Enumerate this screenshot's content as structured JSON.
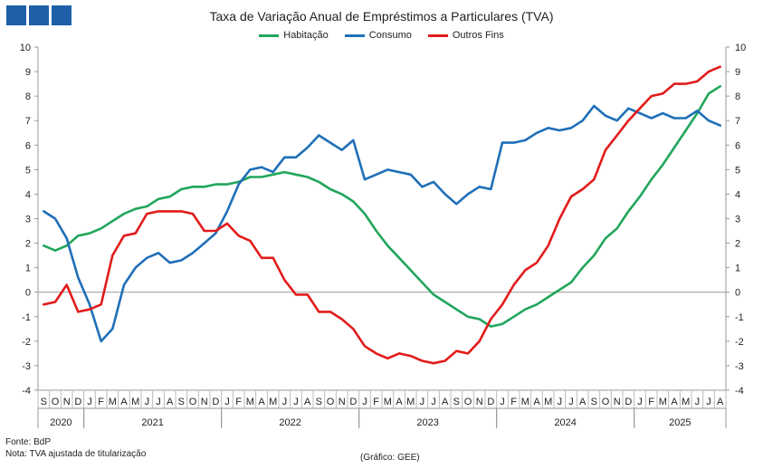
{
  "header": {
    "title": "Taxa de Variação Anual de Empréstimos a Particulares (TVA)"
  },
  "colors": {
    "logo": "#1f5fa8",
    "axis": "#999999",
    "grid": "#bbbbbb"
  },
  "footer": {
    "source": "Fonte: BdP",
    "note": "Nota: TVA ajustada de titularização",
    "credit": "(Gráfico: GEE)"
  },
  "chart_data": {
    "type": "line",
    "title": "Taxa de Variação Anual de Empréstimos a Particulares (TVA)",
    "ylim": [
      -4,
      10
    ],
    "yticks": [
      -4,
      -3,
      -2,
      -1,
      0,
      1,
      2,
      3,
      4,
      5,
      6,
      7,
      8,
      9,
      10
    ],
    "grid": false,
    "legend_position": "top-center",
    "x": [
      "S",
      "O",
      "N",
      "D",
      "J",
      "F",
      "M",
      "A",
      "M",
      "J",
      "J",
      "A",
      "S",
      "O",
      "N",
      "D",
      "J",
      "F",
      "M",
      "A",
      "M",
      "J",
      "J",
      "A",
      "S",
      "O",
      "N",
      "D",
      "J",
      "F",
      "M",
      "A",
      "M",
      "J",
      "J",
      "A",
      "S",
      "O",
      "N",
      "D",
      "J",
      "F",
      "M",
      "A",
      "M",
      "J",
      "J",
      "A",
      "S",
      "O",
      "N",
      "D",
      "J",
      "F",
      "M",
      "A",
      "M",
      "J",
      "J",
      "A"
    ],
    "years": [
      {
        "label": "2020",
        "start": 0,
        "end": 4
      },
      {
        "label": "2021",
        "start": 4,
        "end": 16
      },
      {
        "label": "2022",
        "start": 16,
        "end": 28
      },
      {
        "label": "2023",
        "start": 28,
        "end": 40
      },
      {
        "label": "2024",
        "start": 40,
        "end": 52
      },
      {
        "label": "2025",
        "start": 52,
        "end": 60
      }
    ],
    "series": [
      {
        "name": "Habitação",
        "color": "#21a65b",
        "values": [
          1.9,
          1.7,
          1.9,
          2.3,
          2.4,
          2.6,
          2.9,
          3.2,
          3.4,
          3.5,
          3.8,
          3.9,
          4.2,
          4.3,
          4.3,
          4.4,
          4.4,
          4.5,
          4.7,
          4.7,
          4.8,
          4.9,
          4.8,
          4.7,
          4.5,
          4.2,
          4.0,
          3.7,
          3.2,
          2.5,
          1.9,
          1.4,
          0.9,
          0.4,
          -0.1,
          -0.4,
          -0.7,
          -1.0,
          -1.1,
          -1.4,
          -1.3,
          -1.0,
          -0.7,
          -0.5,
          -0.2,
          0.1,
          0.4,
          1.0,
          1.5,
          2.2,
          2.6,
          3.3,
          3.9,
          4.6,
          5.2,
          5.9,
          6.6,
          7.3,
          8.1,
          8.4
        ]
      },
      {
        "name": "Consumo",
        "color": "#1f6fb8",
        "values": [
          3.3,
          3.0,
          2.2,
          0.6,
          -0.5,
          -2.0,
          -1.5,
          0.3,
          1.0,
          1.4,
          1.6,
          1.2,
          1.3,
          1.6,
          2.0,
          2.4,
          3.3,
          4.4,
          5.0,
          5.1,
          4.9,
          5.5,
          5.5,
          5.9,
          6.4,
          6.1,
          5.8,
          6.2,
          4.6,
          4.8,
          5.0,
          4.9,
          4.8,
          4.3,
          4.5,
          4.0,
          3.6,
          4.0,
          4.3,
          4.2,
          6.1,
          6.1,
          6.2,
          6.5,
          6.7,
          6.6,
          6.7,
          7.0,
          7.6,
          7.2,
          7.0,
          7.5,
          7.3,
          7.1,
          7.3,
          7.1,
          7.1,
          7.4,
          7.0,
          6.8
        ]
      },
      {
        "name": "Outros Fins",
        "color": "#e21b1b",
        "values": [
          -0.5,
          -0.4,
          0.3,
          -0.8,
          -0.7,
          -0.5,
          1.5,
          2.3,
          2.4,
          3.2,
          3.3,
          3.3,
          3.3,
          3.2,
          2.5,
          2.5,
          2.8,
          2.3,
          2.1,
          1.4,
          1.4,
          0.5,
          -0.1,
          -0.1,
          -0.8,
          -0.8,
          -1.1,
          -1.5,
          -2.2,
          -2.5,
          -2.7,
          -2.5,
          -2.6,
          -2.8,
          -2.9,
          -2.8,
          -2.4,
          -2.5,
          -2.0,
          -1.1,
          -0.5,
          0.3,
          0.9,
          1.2,
          1.9,
          3.0,
          3.9,
          4.2,
          4.6,
          5.8,
          6.4,
          7.0,
          7.5,
          8.0,
          8.1,
          8.5,
          8.5,
          8.6,
          9.0,
          9.2
        ]
      }
    ]
  }
}
